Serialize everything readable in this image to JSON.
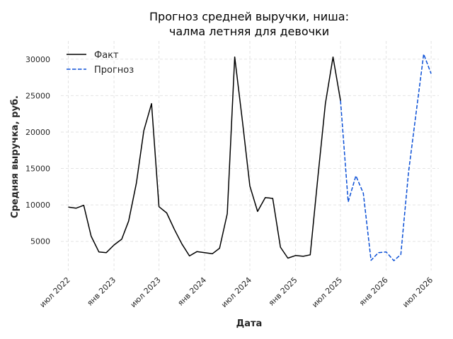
{
  "chart_data": {
    "type": "line",
    "title_line1": "Прогноз средней выручки, ниша:",
    "title_line2": "чалма летняя для девочки",
    "xlabel": "Дата",
    "ylabel": "Средняя выручка, руб.",
    "x_ticks": [
      {
        "date": "2022-07-01",
        "label": "июл 2022"
      },
      {
        "date": "2023-01-01",
        "label": "янв 2023"
      },
      {
        "date": "2023-07-01",
        "label": "июл 2023"
      },
      {
        "date": "2024-01-01",
        "label": "янв 2024"
      },
      {
        "date": "2024-07-01",
        "label": "июл 2024"
      },
      {
        "date": "2025-01-01",
        "label": "янв 2025"
      },
      {
        "date": "2025-07-01",
        "label": "июл 2025"
      },
      {
        "date": "2026-01-01",
        "label": "янв 2026"
      },
      {
        "date": "2026-07-01",
        "label": "июл 2026"
      }
    ],
    "y_ticks": [
      5000,
      10000,
      15000,
      20000,
      25000,
      30000
    ],
    "ylim": [
      1000,
      32500
    ],
    "xlim": [
      "2022-06-01",
      "2026-08-01"
    ],
    "grid": true,
    "legend_position": "top-left",
    "series": [
      {
        "name": "Факт",
        "color": "#000000",
        "style": "solid",
        "points": [
          {
            "x": "2022-07-01",
            "y": 9700
          },
          {
            "x": "2022-08-01",
            "y": 9550
          },
          {
            "x": "2022-09-01",
            "y": 9950
          },
          {
            "x": "2022-10-01",
            "y": 5700
          },
          {
            "x": "2022-11-01",
            "y": 3550
          },
          {
            "x": "2022-12-01",
            "y": 3450
          },
          {
            "x": "2023-01-01",
            "y": 4500
          },
          {
            "x": "2023-02-01",
            "y": 5300
          },
          {
            "x": "2023-03-01",
            "y": 7800
          },
          {
            "x": "2023-04-01",
            "y": 13000
          },
          {
            "x": "2023-05-01",
            "y": 20200
          },
          {
            "x": "2023-06-01",
            "y": 23900
          },
          {
            "x": "2023-07-01",
            "y": 9750
          },
          {
            "x": "2023-08-01",
            "y": 8900
          },
          {
            "x": "2023-09-01",
            "y": 6650
          },
          {
            "x": "2023-10-01",
            "y": 4650
          },
          {
            "x": "2023-11-01",
            "y": 3000
          },
          {
            "x": "2023-12-01",
            "y": 3600
          },
          {
            "x": "2024-01-01",
            "y": 3450
          },
          {
            "x": "2024-02-01",
            "y": 3300
          },
          {
            "x": "2024-03-01",
            "y": 4050
          },
          {
            "x": "2024-04-01",
            "y": 8800
          },
          {
            "x": "2024-05-01",
            "y": 30300
          },
          {
            "x": "2024-06-01",
            "y": 21500
          },
          {
            "x": "2024-07-01",
            "y": 12600
          },
          {
            "x": "2024-08-01",
            "y": 9100
          },
          {
            "x": "2024-09-01",
            "y": 11000
          },
          {
            "x": "2024-10-01",
            "y": 10900
          },
          {
            "x": "2024-11-01",
            "y": 4200
          },
          {
            "x": "2024-12-01",
            "y": 2700
          },
          {
            "x": "2025-01-01",
            "y": 3050
          },
          {
            "x": "2025-02-01",
            "y": 2950
          },
          {
            "x": "2025-03-01",
            "y": 3150
          },
          {
            "x": "2025-04-01",
            "y": 13800
          },
          {
            "x": "2025-05-01",
            "y": 23900
          },
          {
            "x": "2025-06-01",
            "y": 30300
          },
          {
            "x": "2025-07-01",
            "y": 24300
          }
        ]
      },
      {
        "name": "Прогноз",
        "color": "#0a4fd6",
        "style": "dashed",
        "points": [
          {
            "x": "2025-07-01",
            "y": 24300
          },
          {
            "x": "2025-08-01",
            "y": 10400
          },
          {
            "x": "2025-09-01",
            "y": 14000
          },
          {
            "x": "2025-10-01",
            "y": 11600
          },
          {
            "x": "2025-11-01",
            "y": 2400
          },
          {
            "x": "2025-12-01",
            "y": 3450
          },
          {
            "x": "2026-01-01",
            "y": 3550
          },
          {
            "x": "2026-02-01",
            "y": 2350
          },
          {
            "x": "2026-03-01",
            "y": 3200
          },
          {
            "x": "2026-04-01",
            "y": 14500
          },
          {
            "x": "2026-05-01",
            "y": 22500
          },
          {
            "x": "2026-06-01",
            "y": 30700
          },
          {
            "x": "2026-07-01",
            "y": 28000
          }
        ]
      }
    ]
  }
}
